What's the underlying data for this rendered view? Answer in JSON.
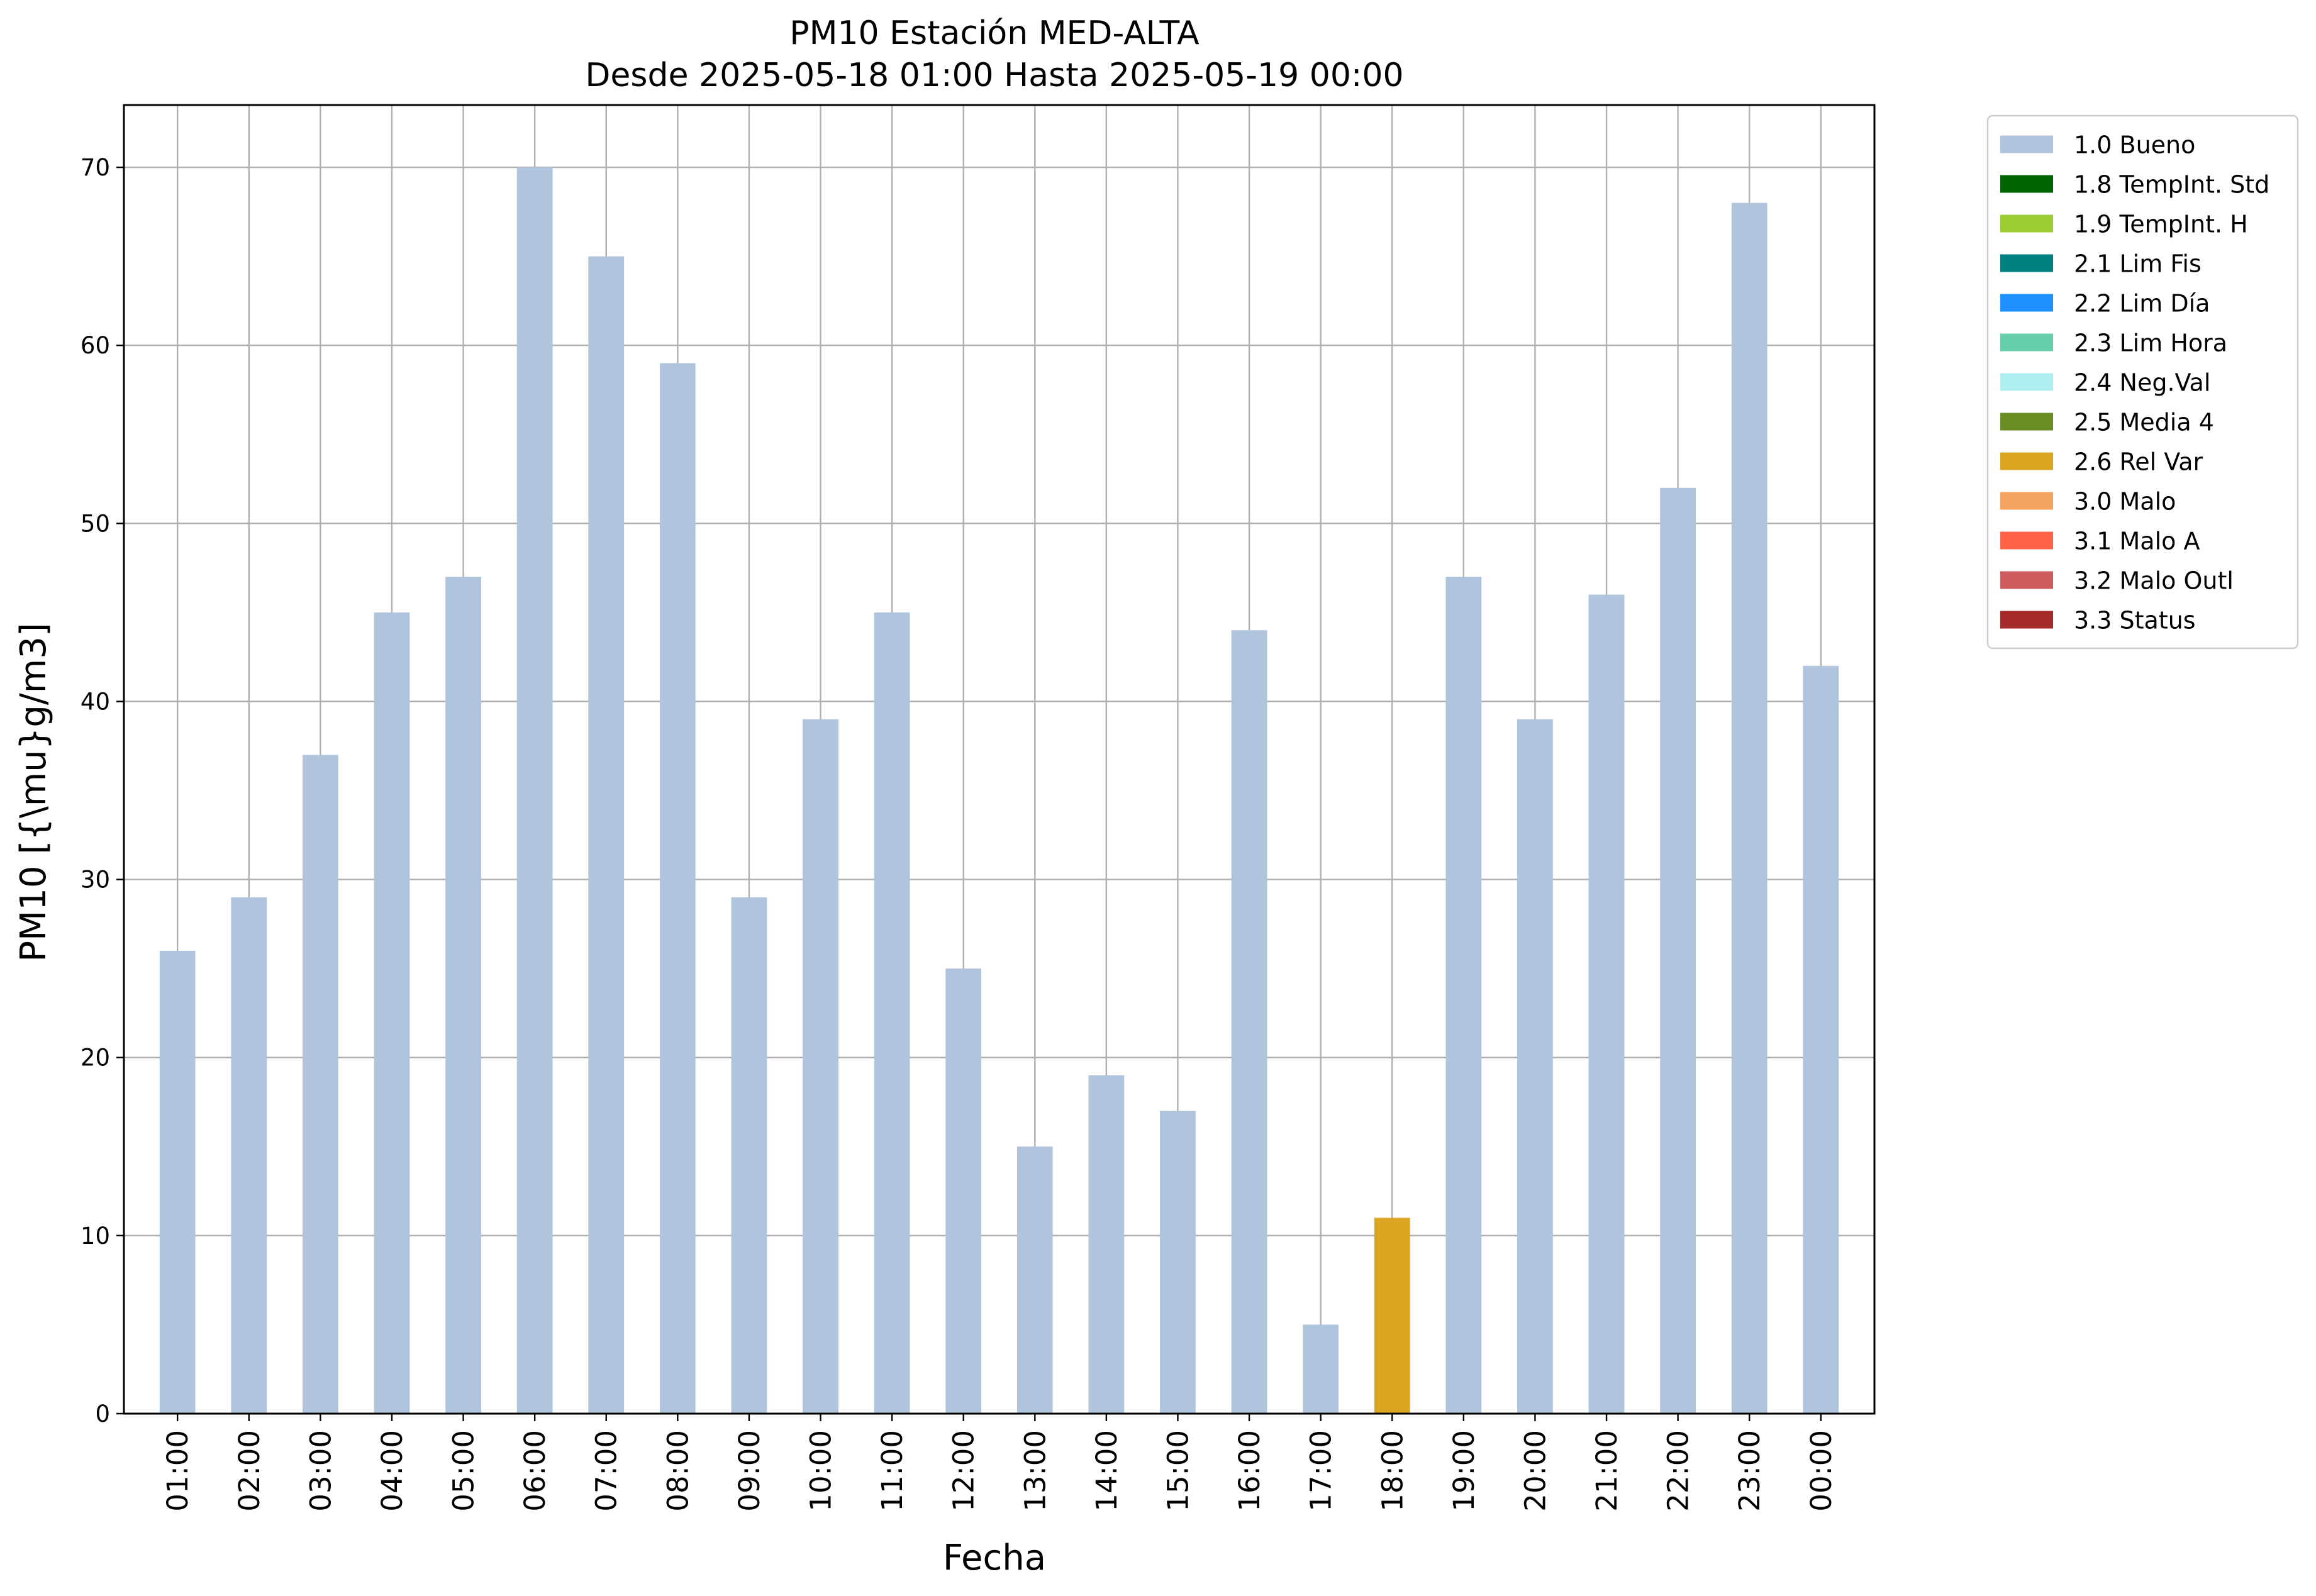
{
  "chart_data": {
    "type": "bar",
    "title": "PM10 Estación MED-ALTA",
    "subtitle": "Desde 2025-05-18 01:00 Hasta 2025-05-19 00:00",
    "xlabel": "Fecha",
    "ylabel": "PM10 [{\\mu}g/m3]",
    "ylim": [
      0,
      73.5
    ],
    "yticks": [
      0,
      10,
      20,
      30,
      40,
      50,
      60,
      70
    ],
    "grid": true,
    "legend_position": "outside-top-right",
    "categories": [
      "01:00",
      "02:00",
      "03:00",
      "04:00",
      "05:00",
      "06:00",
      "07:00",
      "08:00",
      "09:00",
      "10:00",
      "11:00",
      "12:00",
      "13:00",
      "14:00",
      "15:00",
      "16:00",
      "17:00",
      "18:00",
      "19:00",
      "20:00",
      "21:00",
      "22:00",
      "23:00",
      "00:00"
    ],
    "values": [
      26,
      29,
      37,
      45,
      47,
      70,
      65,
      59,
      29,
      39,
      45,
      25,
      15,
      19,
      17,
      44,
      5,
      11,
      47,
      39,
      46,
      52,
      68,
      42
    ],
    "flags": [
      "1.0 Bueno",
      "1.0 Bueno",
      "1.0 Bueno",
      "1.0 Bueno",
      "1.0 Bueno",
      "1.0 Bueno",
      "1.0 Bueno",
      "1.0 Bueno",
      "1.0 Bueno",
      "1.0 Bueno",
      "1.0 Bueno",
      "1.0 Bueno",
      "1.0 Bueno",
      "1.0 Bueno",
      "1.0 Bueno",
      "1.0 Bueno",
      "1.0 Bueno",
      "2.6 Rel Var",
      "1.0 Bueno",
      "1.0 Bueno",
      "1.0 Bueno",
      "1.0 Bueno",
      "1.0 Bueno",
      "1.0 Bueno"
    ],
    "legend": [
      {
        "label": "1.0 Bueno",
        "color": "#b0c4de"
      },
      {
        "label": "1.8 TempInt. Std",
        "color": "#006400"
      },
      {
        "label": "1.9 TempInt. H",
        "color": "#9acd32"
      },
      {
        "label": "2.1 Lim Fis",
        "color": "#008080"
      },
      {
        "label": "2.2 Lim Día",
        "color": "#1e90ff"
      },
      {
        "label": "2.3 Lim Hora",
        "color": "#66cdaa"
      },
      {
        "label": "2.4 Neg.Val",
        "color": "#afeeee"
      },
      {
        "label": "2.5 Media 4",
        "color": "#6b8e23"
      },
      {
        "label": "2.6 Rel Var",
        "color": "#daa520"
      },
      {
        "label": "3.0 Malo",
        "color": "#f4a460"
      },
      {
        "label": "3.1 Malo A",
        "color": "#ff6347"
      },
      {
        "label": "3.2 Malo Outl",
        "color": "#cd5c5c"
      },
      {
        "label": "3.3 Status",
        "color": "#a52a2a"
      }
    ]
  }
}
